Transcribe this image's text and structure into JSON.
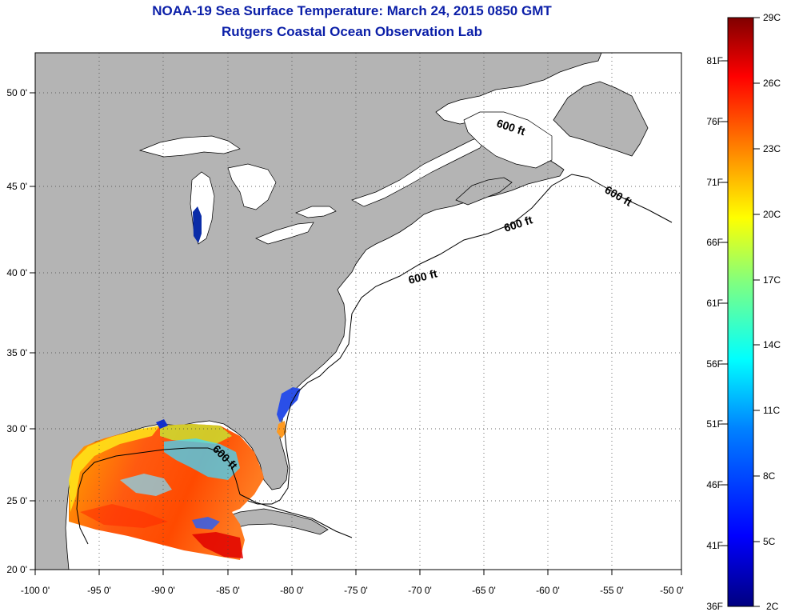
{
  "title": "NOAA-19 Sea Surface Temperature:  March 24, 2015 0850 GMT",
  "subtitle": "Rutgers Coastal Ocean Observation Lab",
  "map": {
    "lon_ticks": [
      "-100 0'",
      "-95 0'",
      "-90 0'",
      "-85 0'",
      "-80 0'",
      "-75 0'",
      "-70 0'",
      "-65 0'",
      "-60 0'",
      "-55 0'",
      "-50 0'"
    ],
    "lat_ticks": [
      "50 0'",
      "45 0'",
      "40 0'",
      "35 0'",
      "30 0'",
      "25 0'",
      "20 0'"
    ],
    "contour_labels": [
      "600 ft",
      "600 ft",
      "600 ft",
      "600 ft",
      "600 ft"
    ],
    "land_color": "#b4b4b4",
    "ocean_color": "#ffffff"
  },
  "colorbar": {
    "celsius": [
      "29C",
      "26C",
      "23C",
      "20C",
      "17C",
      "14C",
      "11C",
      "8C",
      "5C",
      "2C"
    ],
    "fahrenheit": [
      "81F",
      "76F",
      "71F",
      "66F",
      "61F",
      "56F",
      "51F",
      "46F",
      "41F",
      "36F"
    ],
    "colors": [
      "#000080",
      "#0000ff",
      "#0080ff",
      "#00ffff",
      "#80ff80",
      "#ffff00",
      "#ff8000",
      "#ff0000",
      "#800000"
    ]
  }
}
